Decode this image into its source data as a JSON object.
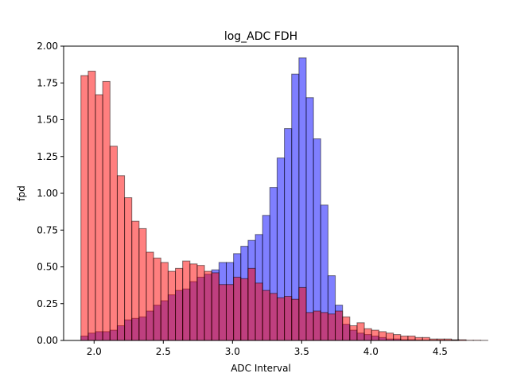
{
  "chart_data": {
    "type": "bar",
    "title": "log_ADC  FDH",
    "xlabel": "ADC Interval",
    "ylabel": "fpd",
    "xlim": [
      1.78,
      4.63
    ],
    "ylim": [
      0,
      2.0
    ],
    "xticks": [
      2.0,
      2.5,
      3.0,
      3.5,
      4.0,
      4.5
    ],
    "xtick_labels": [
      "2.0",
      "2.5",
      "3.0",
      "3.5",
      "4.0",
      "4.5"
    ],
    "yticks": [
      0.0,
      0.25,
      0.5,
      0.75,
      1.0,
      1.25,
      1.5,
      1.75,
      2.0
    ],
    "ytick_labels": [
      "0.00",
      "0.25",
      "0.50",
      "0.75",
      "1.00",
      "1.25",
      "1.50",
      "1.75",
      "2.00"
    ],
    "grid": false,
    "legend": false,
    "bin_start": 1.905,
    "bin_width": 0.0525,
    "series": [
      {
        "color": "#0000ff",
        "values": [
          0.03,
          0.05,
          0.06,
          0.06,
          0.07,
          0.1,
          0.14,
          0.15,
          0.16,
          0.2,
          0.24,
          0.27,
          0.31,
          0.34,
          0.35,
          0.4,
          0.43,
          0.45,
          0.48,
          0.53,
          0.53,
          0.59,
          0.64,
          0.68,
          0.72,
          0.85,
          1.04,
          1.24,
          1.44,
          1.81,
          1.92,
          1.65,
          1.37,
          0.92,
          0.44,
          0.24,
          0.11,
          0.07,
          0.05,
          0.04,
          0.03,
          0.02,
          0.01,
          0.01,
          0.005,
          0.005,
          0.003,
          0.002,
          0.001,
          0.001,
          0.001,
          0.001,
          0.001,
          0.0,
          0.0,
          0.0
        ]
      },
      {
        "color": "#ff0000",
        "values": [
          1.8,
          1.83,
          1.67,
          1.76,
          1.32,
          1.12,
          0.97,
          0.81,
          0.76,
          0.6,
          0.56,
          0.53,
          0.47,
          0.49,
          0.54,
          0.52,
          0.51,
          0.47,
          0.46,
          0.38,
          0.38,
          0.43,
          0.42,
          0.49,
          0.39,
          0.34,
          0.32,
          0.29,
          0.3,
          0.28,
          0.36,
          0.19,
          0.2,
          0.19,
          0.18,
          0.2,
          0.16,
          0.1,
          0.12,
          0.08,
          0.07,
          0.06,
          0.05,
          0.04,
          0.03,
          0.03,
          0.02,
          0.02,
          0.01,
          0.01,
          0.01,
          0.005,
          0.005,
          0.002,
          0.002,
          0.001
        ]
      }
    ]
  }
}
